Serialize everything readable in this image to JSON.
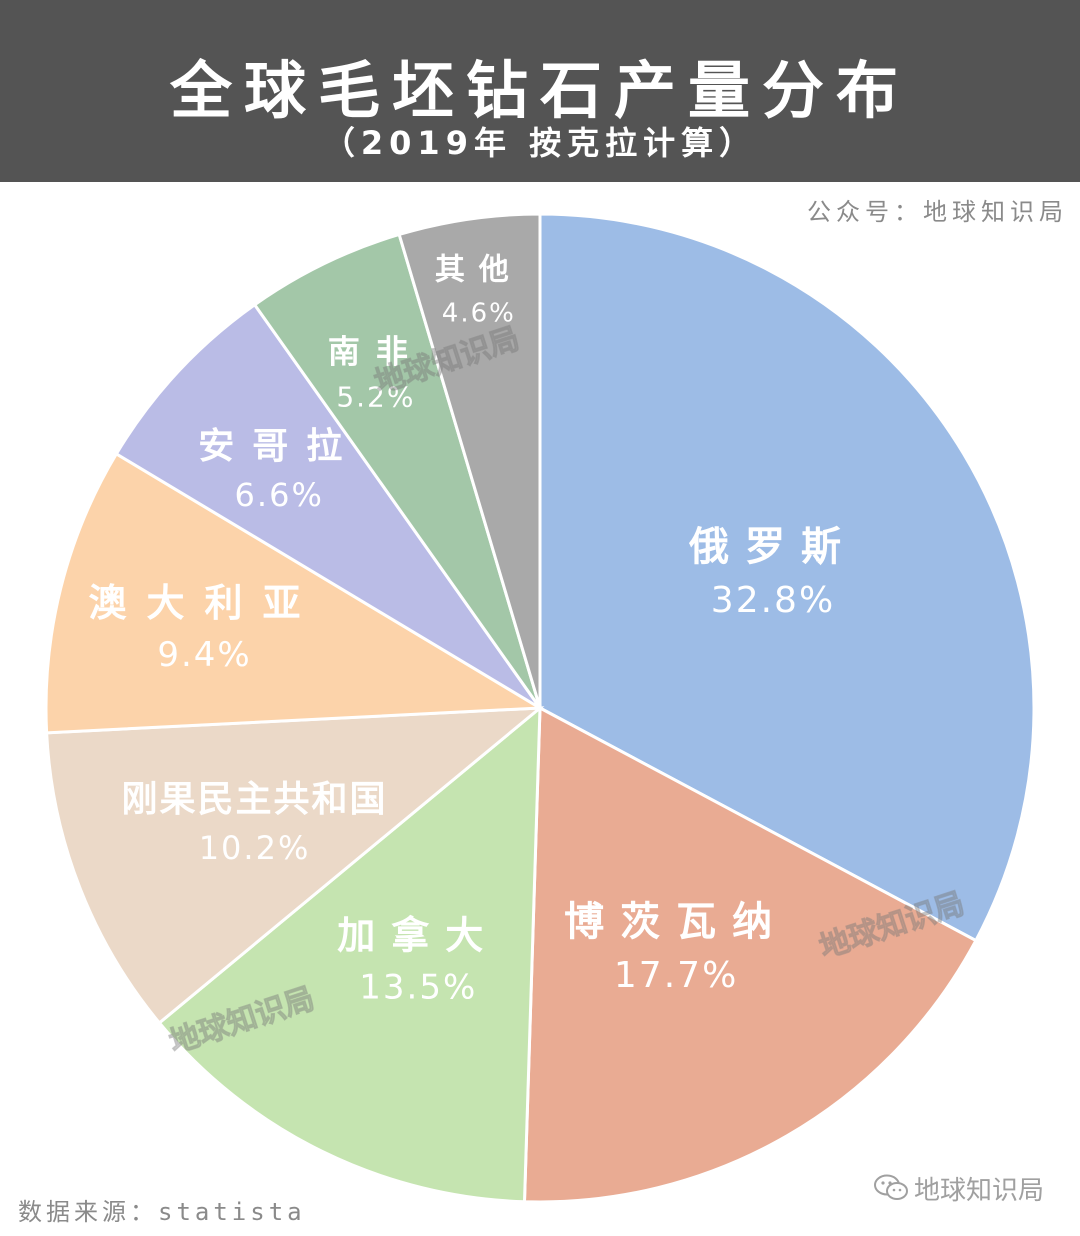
{
  "header": {
    "title": "全球毛坯钻石产量分布",
    "subtitle": "（2019年 按克拉计算）",
    "background": "#545454"
  },
  "account_label": "公众号：地球知识局",
  "source_label": "数据来源：statista",
  "brand_label": "地球知识局",
  "watermark_text": "地球知识局",
  "chart_data": {
    "type": "pie",
    "title": "全球毛坯钻石产量分布",
    "subtitle": "（2019年 按克拉计算）",
    "unit": "%",
    "slices": [
      {
        "name": "俄罗斯",
        "value": 32.8,
        "label": "32.8%",
        "color": "#9dbce6"
      },
      {
        "name": "博茨瓦纳",
        "value": 17.7,
        "label": "17.7%",
        "color": "#e9ab93"
      },
      {
        "name": "加拿大",
        "value": 13.5,
        "label": "13.5%",
        "color": "#c5e4b0"
      },
      {
        "name": "刚果民主共和国",
        "value": 10.2,
        "label": "10.2%",
        "color": "#ebd9c8"
      },
      {
        "name": "澳大利亚",
        "value": 9.4,
        "label": "9.4%",
        "color": "#fcd3aa"
      },
      {
        "name": "安哥拉",
        "value": 6.6,
        "label": "6.6%",
        "color": "#babce6"
      },
      {
        "name": "南非",
        "value": 5.2,
        "label": "5.2%",
        "color": "#a3c7a8"
      },
      {
        "name": "其他",
        "value": 4.6,
        "label": "4.6%",
        "color": "#a9a9a9"
      }
    ]
  }
}
